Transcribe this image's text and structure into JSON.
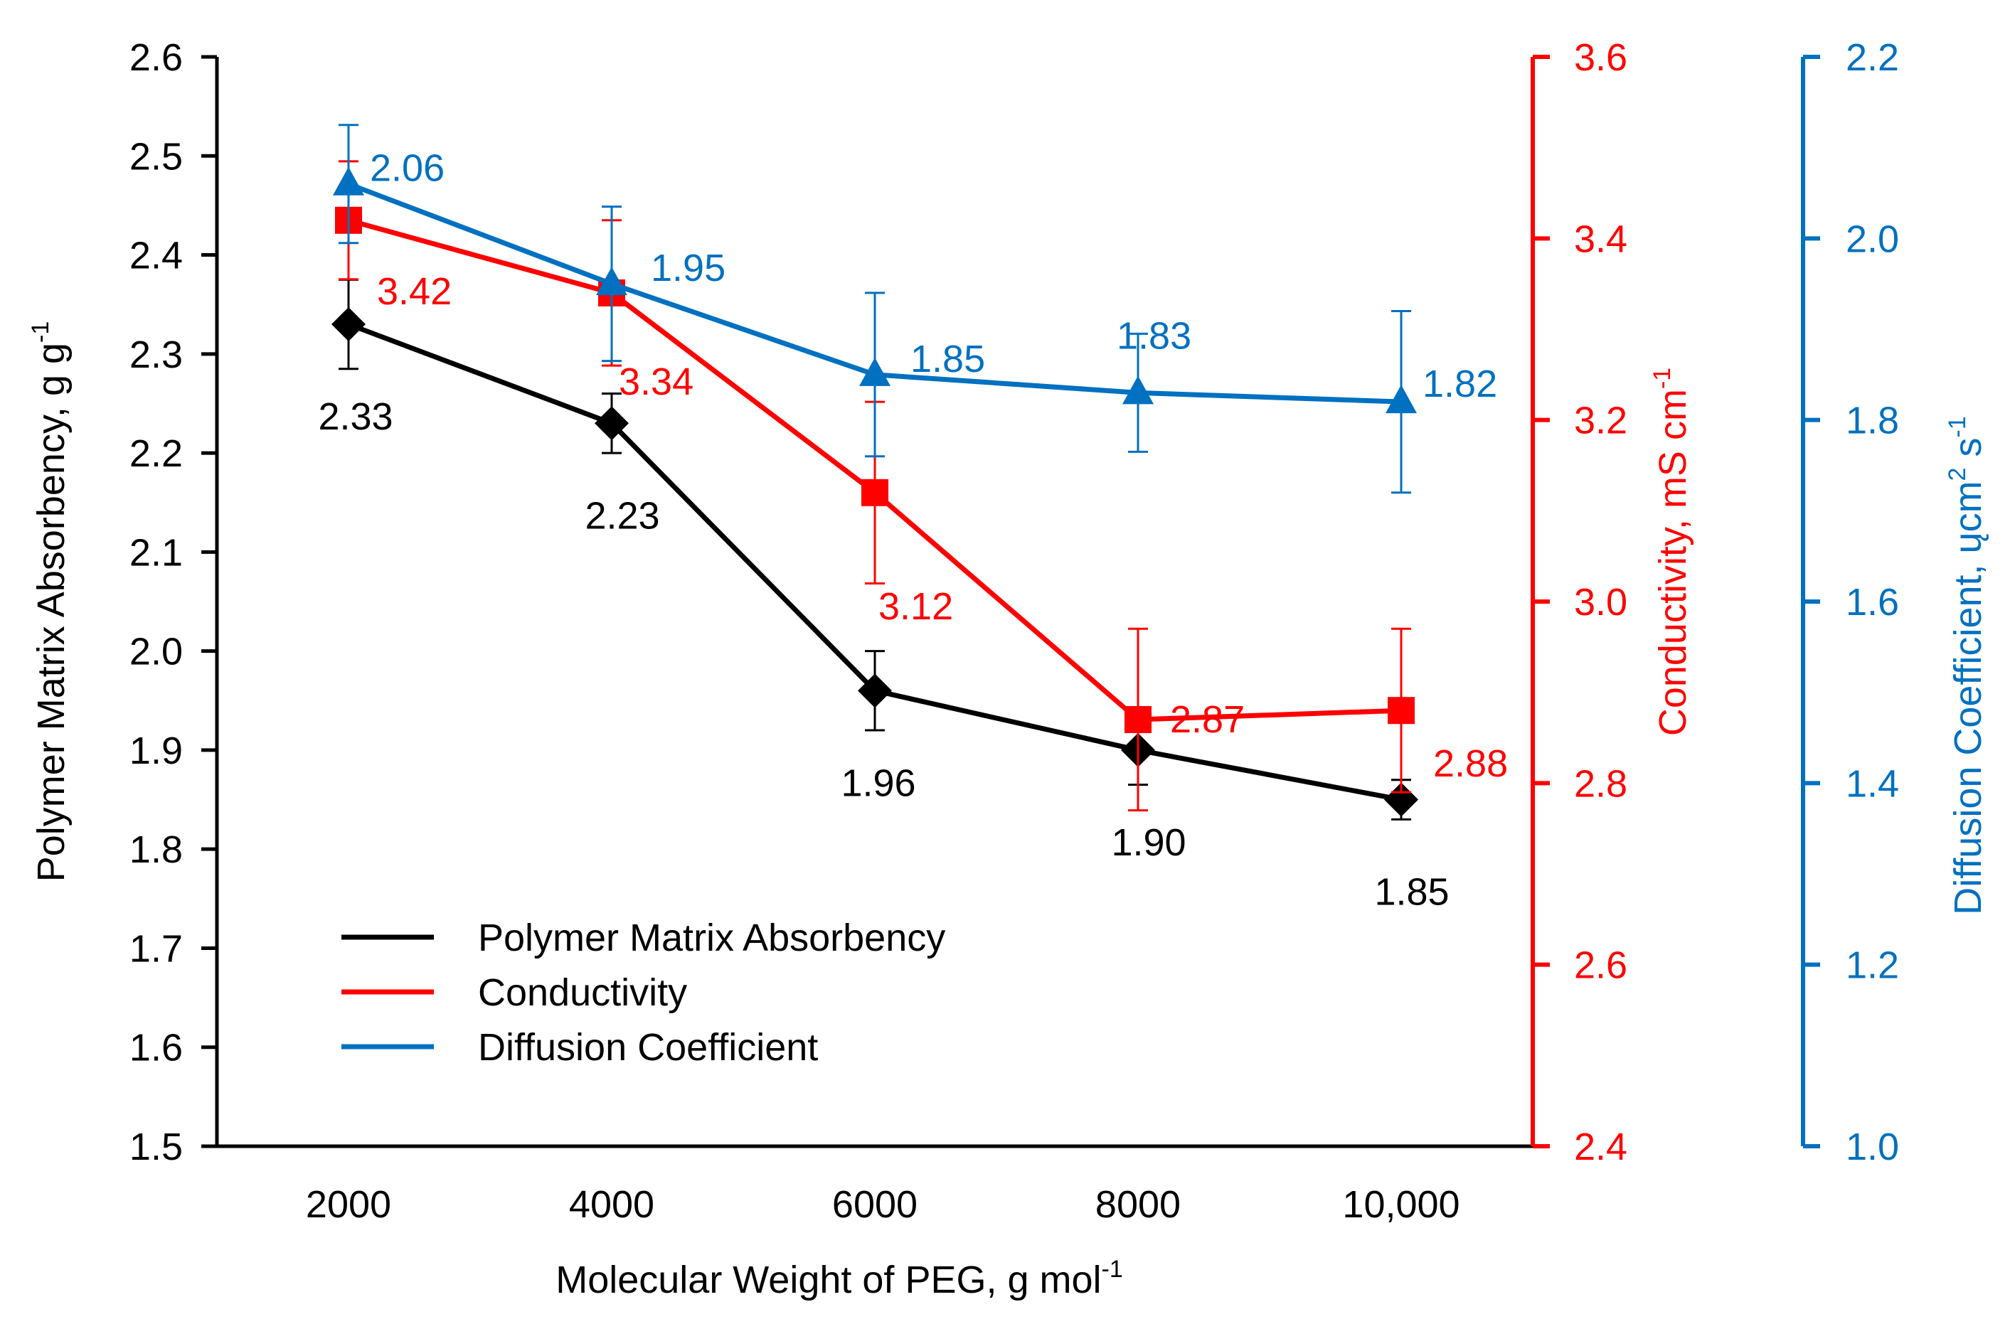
{
  "chart_data": {
    "type": "line",
    "categories": [
      "2000",
      "4000",
      "6000",
      "8000",
      "10,000"
    ],
    "xlabel": "Molecular Weight of PEG, g mol",
    "xlabel_sup": "-1",
    "legend_position": "lower-left",
    "axes": {
      "left": {
        "label": "Polymer Matrix Absorbency, g g",
        "label_sup": "-1",
        "color": "#000000",
        "ylim": [
          1.5,
          2.6
        ],
        "ticks": [
          "1.5",
          "1.6",
          "1.7",
          "1.8",
          "1.9",
          "2.0",
          "2.1",
          "2.2",
          "2.3",
          "2.4",
          "2.5",
          "2.6"
        ]
      },
      "right1": {
        "label": "Conductivity, mS cm",
        "label_sup": "-1",
        "color": "#ff0000",
        "ylim": [
          2.4,
          3.6
        ],
        "ticks": [
          "2.4",
          "2.6",
          "2.8",
          "3.0",
          "3.2",
          "3.4",
          "3.6"
        ]
      },
      "right2": {
        "label": "Diffusion Coefficient, ",
        "label_mid": "ųcm",
        "label_sup1": "2",
        "label_mid2": " s",
        "label_sup2": "-1",
        "color": "#0070c0",
        "ylim": [
          1.0,
          2.2
        ],
        "ticks": [
          "1.0",
          "1.2",
          "1.4",
          "1.6",
          "1.8",
          "2.0",
          "2.2"
        ]
      }
    },
    "series": [
      {
        "name": "Polymer Matrix Absorbency",
        "axis": "left",
        "color": "#000000",
        "marker": "diamond",
        "values": [
          2.33,
          2.23,
          1.96,
          1.9,
          1.85
        ],
        "errors": [
          0.045,
          0.03,
          0.04,
          0.035,
          0.02
        ],
        "labels": [
          "2.33",
          "2.23",
          "1.96",
          "1.90",
          "1.85"
        ]
      },
      {
        "name": "Conductivity",
        "axis": "right1",
        "color": "#ff0000",
        "marker": "square",
        "values": [
          3.42,
          3.34,
          3.12,
          2.87,
          2.88
        ],
        "errors": [
          0.065,
          0.08,
          0.1,
          0.1,
          0.09
        ],
        "labels": [
          "3.42",
          "3.34",
          "3.12",
          "2.87",
          "2.88"
        ]
      },
      {
        "name": "Diffusion Coefficient",
        "axis": "right2",
        "color": "#0070c0",
        "marker": "triangle",
        "values": [
          2.06,
          1.95,
          1.85,
          1.83,
          1.82
        ],
        "errors": [
          0.065,
          0.085,
          0.09,
          0.065,
          0.1
        ],
        "labels": [
          "2.06",
          "1.95",
          "1.85",
          "1.83",
          "1.82"
        ]
      }
    ]
  }
}
